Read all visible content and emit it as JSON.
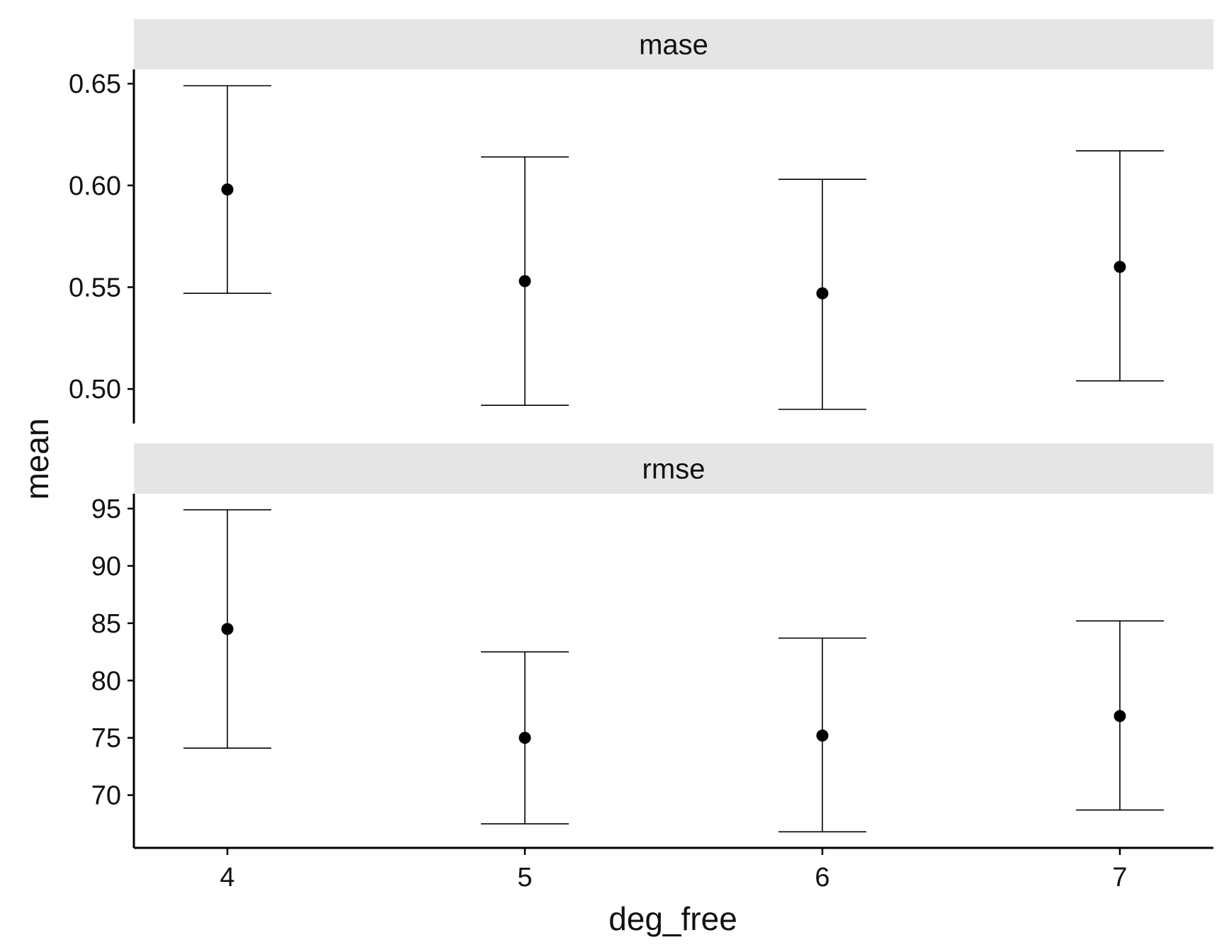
{
  "chart_data": {
    "type": "errorbar",
    "xlabel": "deg_free",
    "ylabel": "mean",
    "x_categories": [
      "4",
      "5",
      "6",
      "7"
    ],
    "panels": [
      {
        "strip": "mase",
        "ylim": [
          0.483,
          0.657
        ],
        "yticks": [
          0.5,
          0.55,
          0.6,
          0.65
        ],
        "ytick_labels": [
          "0.50",
          "0.55",
          "0.60",
          "0.65"
        ],
        "points": [
          {
            "x": "4",
            "mean": 0.598,
            "lower": 0.547,
            "upper": 0.649
          },
          {
            "x": "5",
            "mean": 0.553,
            "lower": 0.492,
            "upper": 0.614
          },
          {
            "x": "6",
            "mean": 0.547,
            "lower": 0.49,
            "upper": 0.603
          },
          {
            "x": "7",
            "mean": 0.56,
            "lower": 0.504,
            "upper": 0.617
          }
        ]
      },
      {
        "strip": "rmse",
        "ylim": [
          65.4,
          96.3
        ],
        "yticks": [
          70,
          75,
          80,
          85,
          90,
          95
        ],
        "ytick_labels": [
          "70",
          "75",
          "80",
          "85",
          "90",
          "95"
        ],
        "points": [
          {
            "x": "4",
            "mean": 84.5,
            "lower": 74.1,
            "upper": 94.9
          },
          {
            "x": "5",
            "mean": 75.0,
            "lower": 67.5,
            "upper": 82.5
          },
          {
            "x": "6",
            "mean": 75.2,
            "lower": 66.8,
            "upper": 83.7
          },
          {
            "x": "7",
            "mean": 76.9,
            "lower": 68.7,
            "upper": 85.2
          }
        ]
      }
    ],
    "colors": {
      "strip_background": "#e5e5e5",
      "ink": "#000000"
    }
  }
}
